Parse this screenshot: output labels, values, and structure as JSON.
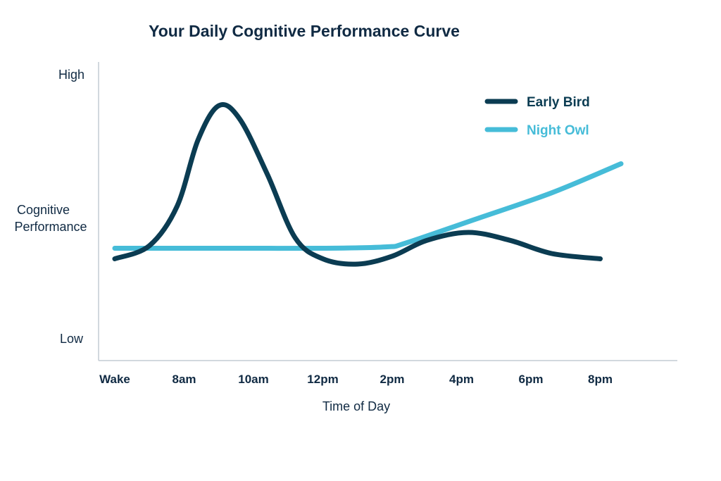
{
  "chart_data": {
    "type": "line",
    "title": "Your Daily Cognitive Performance Curve",
    "xlabel": "Time of Day",
    "ylabel": [
      "Cognitive",
      "Performance"
    ],
    "categories": [
      "Wake",
      "8am",
      "10am",
      "12pm",
      "2pm",
      "4pm",
      "6pm",
      "8pm"
    ],
    "y_tick_labels": [
      "High",
      "Low"
    ],
    "xlim": [
      0,
      7.6
    ],
    "ylim": [
      0,
      100
    ],
    "grid": false,
    "legend_position": "top-right",
    "series": [
      {
        "name": "Early Bird",
        "color": "#0b3c52",
        "points": [
          [
            0,
            30
          ],
          [
            0.5,
            35
          ],
          [
            0.9,
            50
          ],
          [
            1.2,
            75
          ],
          [
            1.5,
            88
          ],
          [
            1.8,
            83
          ],
          [
            2.2,
            62
          ],
          [
            2.6,
            38
          ],
          [
            3.0,
            30
          ],
          [
            3.5,
            28
          ],
          [
            4.0,
            31
          ],
          [
            4.5,
            37
          ],
          [
            5.1,
            40
          ],
          [
            5.7,
            37
          ],
          [
            6.3,
            32
          ],
          [
            7.0,
            30
          ]
        ]
      },
      {
        "name": "Night Owl",
        "color": "#46bcd8",
        "points": [
          [
            0,
            34
          ],
          [
            1.0,
            34
          ],
          [
            2.0,
            34
          ],
          [
            3.0,
            34
          ],
          [
            3.9,
            34.5
          ],
          [
            4.2,
            36
          ],
          [
            5.2,
            45
          ],
          [
            6.3,
            55
          ],
          [
            7.3,
            66
          ]
        ]
      }
    ]
  }
}
